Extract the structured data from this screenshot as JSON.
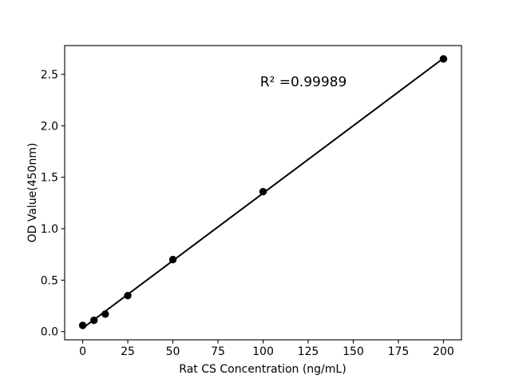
{
  "chart_data": {
    "type": "scatter",
    "x": [
      0,
      6.25,
      12.5,
      25,
      50,
      100,
      200
    ],
    "y": [
      0.06,
      0.11,
      0.17,
      0.35,
      0.7,
      1.36,
      2.65
    ],
    "fit_line": "linear",
    "annotation": "R² =0.99989",
    "xlabel": "Rat CS Concentration (ng/mL)",
    "ylabel": "OD Value(450nm)",
    "xticks": [
      "0",
      "25",
      "50",
      "75",
      "100",
      "125",
      "150",
      "175",
      "200"
    ],
    "yticks": [
      "0.0",
      "0.5",
      "1.0",
      "1.5",
      "2.0",
      "2.5"
    ],
    "xlim": [
      -10,
      210
    ],
    "ylim": [
      -0.08,
      2.78
    ],
    "grid": false,
    "legend": null,
    "marker_color": "#000000",
    "line_color": "#000000",
    "background_color": "#ffffff"
  }
}
